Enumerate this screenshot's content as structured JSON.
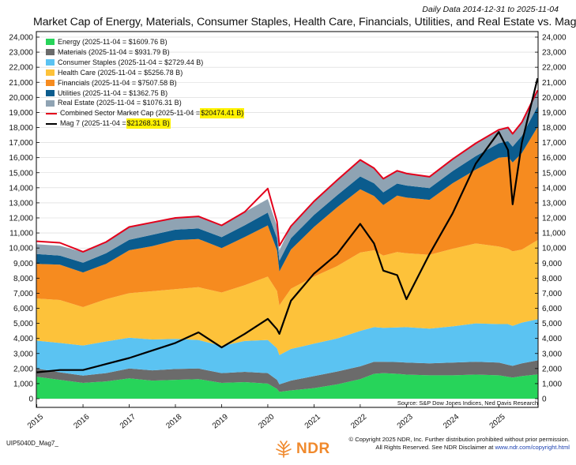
{
  "header": {
    "date_range": "Daily Data 2014-12-31 to 2025-11-04",
    "title": "Market Cap of Energy, Materials, Consumer Staples, Health Care, Financials, Utilities, and Real Estate vs. Mag 7"
  },
  "colors": {
    "energy": "#27d45a",
    "materials": "#6b6b6b",
    "consumer_staples": "#5bc3f2",
    "health_care": "#fdc23a",
    "financials": "#f68b1f",
    "utilities": "#0b5c8e",
    "real_estate": "#8fa3b3",
    "combined": "#e3001b",
    "mag7": "#000000",
    "highlight": "#fff200"
  },
  "legend": {
    "energy": "Energy (2025-11-04 = $1609.76 B)",
    "materials": "Materials (2025-11-04 = $931.79 B)",
    "consumer_staples": "Consumer Staples (2025-11-04 = $2729.44 B)",
    "health_care": "Health Care (2025-11-04 = $5256.78 B)",
    "financials": "Financials (2025-11-04 = $7507.58 B)",
    "utilities": "Utilities (2025-11-04 = $1362.75 B)",
    "real_estate": "Real Estate (2025-11-04 = $1076.31 B)",
    "combined_prefix": "Combined Sector Market Cap (2025-11-04 = ",
    "combined_value": "$20474.41 B)",
    "mag7_prefix": "Mag 7 (2025-11-04 = ",
    "mag7_value": "$21268.31 B)"
  },
  "source": "Source: S&P Dow Jones Indices, Ned Davis Research",
  "footer": {
    "code": "UIP5040D_Mag7_",
    "copyright_line1": "© Copyright 2025 NDR, Inc. Further distribution prohibited without prior permission.",
    "copyright_line2": "All Rights Reserved. See NDR Disclaimer at ",
    "link": "www.ndr.com/copyright.html",
    "logo_text": "NDR"
  },
  "chart_data": {
    "type": "area",
    "stacked": true,
    "ylim": [
      0,
      24000
    ],
    "xlim": [
      2014.99,
      2025.85
    ],
    "y_ticks": [
      0,
      1000,
      2000,
      3000,
      4000,
      5000,
      6000,
      7000,
      8000,
      9000,
      10000,
      11000,
      12000,
      13000,
      14000,
      15000,
      16000,
      17000,
      18000,
      19000,
      20000,
      21000,
      22000,
      23000,
      24000
    ],
    "y_tick_labels": [
      "0",
      "1,000",
      "2,000",
      "3,000",
      "4,000",
      "5,000",
      "6,000",
      "7,000",
      "8,000",
      "9,000",
      "10,000",
      "11,000",
      "12,000",
      "13,000",
      "14,000",
      "15,000",
      "16,000",
      "17,000",
      "18,000",
      "19,000",
      "20,000",
      "21,000",
      "22,000",
      "23,000",
      "24,000"
    ],
    "x_ticks": [
      2015,
      2016,
      2017,
      2018,
      2019,
      2020,
      2021,
      2022,
      2023,
      2024,
      2025
    ],
    "x_tick_labels": [
      "2015",
      "2016",
      "2017",
      "2018",
      "2019",
      "2020",
      "2021",
      "2022",
      "2023",
      "2024",
      "2025"
    ],
    "grid": true,
    "legend_position": "top-left",
    "x": [
      2015.0,
      2015.5,
      2016.0,
      2016.5,
      2017.0,
      2017.5,
      2018.0,
      2018.5,
      2019.0,
      2019.5,
      2020.0,
      2020.2,
      2020.25,
      2020.5,
      2021.0,
      2021.5,
      2022.0,
      2022.3,
      2022.5,
      2022.8,
      2023.0,
      2023.5,
      2024.0,
      2024.5,
      2025.0,
      2025.2,
      2025.3,
      2025.5,
      2025.84
    ],
    "series": [
      {
        "name": "Energy",
        "values": [
          1450,
          1250,
          1050,
          1150,
          1350,
          1200,
          1250,
          1300,
          1050,
          1100,
          1000,
          650,
          450,
          550,
          700,
          950,
          1300,
          1650,
          1700,
          1650,
          1600,
          1550,
          1550,
          1600,
          1550,
          1450,
          1400,
          1500,
          1610
        ]
      },
      {
        "name": "Materials",
        "values": [
          550,
          500,
          480,
          550,
          650,
          680,
          720,
          700,
          650,
          680,
          700,
          600,
          500,
          650,
          800,
          850,
          850,
          800,
          750,
          780,
          800,
          800,
          850,
          850,
          850,
          800,
          780,
          850,
          932
        ]
      },
      {
        "name": "Consumer Staples",
        "values": [
          1850,
          1950,
          2000,
          2100,
          2050,
          2050,
          2000,
          1900,
          1800,
          2050,
          2200,
          2100,
          1950,
          2100,
          2150,
          2200,
          2350,
          2300,
          2250,
          2300,
          2350,
          2300,
          2400,
          2550,
          2550,
          2700,
          2650,
          2700,
          2729
        ]
      },
      {
        "name": "Health Care",
        "values": [
          2800,
          2850,
          2550,
          2800,
          2950,
          3200,
          3300,
          3500,
          3550,
          3700,
          4200,
          3800,
          3300,
          4000,
          4450,
          4800,
          5200,
          5100,
          4800,
          5000,
          4900,
          4900,
          5150,
          5300,
          5150,
          5000,
          4950,
          4850,
          5257
        ]
      },
      {
        "name": "Financials",
        "values": [
          2300,
          2350,
          2300,
          2350,
          2850,
          3000,
          3250,
          3200,
          2950,
          3200,
          3400,
          2700,
          2250,
          2600,
          3300,
          3900,
          4200,
          3600,
          3350,
          3750,
          3700,
          3650,
          4350,
          4900,
          5900,
          6100,
          5900,
          6400,
          7508
        ]
      },
      {
        "name": "Utilities",
        "values": [
          650,
          600,
          650,
          700,
          700,
          750,
          700,
          700,
          720,
          780,
          850,
          800,
          700,
          750,
          800,
          800,
          850,
          850,
          850,
          800,
          800,
          780,
          800,
          900,
          950,
          1050,
          1050,
          1150,
          1363
        ]
      },
      {
        "name": "Real Estate",
        "values": [
          650,
          650,
          700,
          750,
          800,
          800,
          750,
          800,
          800,
          880,
          900,
          800,
          700,
          800,
          900,
          1000,
          1100,
          1000,
          900,
          850,
          800,
          750,
          800,
          850,
          900,
          900,
          850,
          900,
          1076
        ]
      }
    ],
    "line_series": [
      {
        "name": "Combined Sector Market Cap",
        "values": [
          10450,
          10350,
          9750,
          10400,
          11400,
          11700,
          12000,
          12100,
          11500,
          12400,
          13950,
          11750,
          10150,
          11450,
          13100,
          14500,
          15850,
          15300,
          14600,
          15130,
          14950,
          14730,
          15900,
          16950,
          17850,
          18000,
          17580,
          18350,
          20474
        ]
      },
      {
        "name": "Mag 7",
        "values": [
          1750,
          1900,
          1900,
          2300,
          2700,
          3200,
          3700,
          4400,
          3400,
          4300,
          5300,
          4600,
          4300,
          6500,
          8300,
          9600,
          11600,
          10300,
          8500,
          8200,
          6600,
          9600,
          12300,
          15600,
          17700,
          16500,
          12900,
          17000,
          21268
        ]
      }
    ]
  }
}
